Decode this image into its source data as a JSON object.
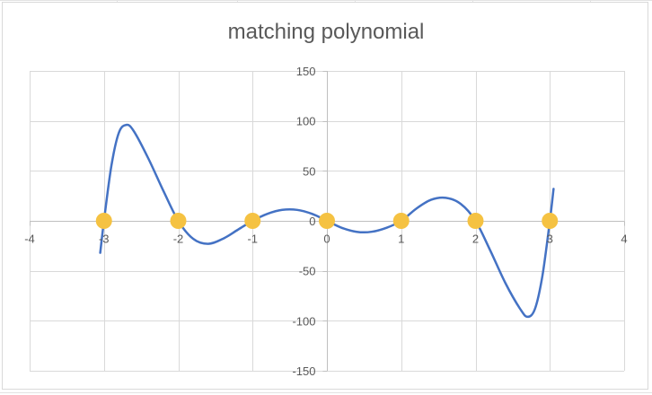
{
  "chart_data": {
    "type": "scatter",
    "title": "matching polynomial",
    "xlabel": "",
    "ylabel": "",
    "xlim": [
      -4,
      4
    ],
    "ylim": [
      -150,
      150
    ],
    "x_ticks": [
      -4,
      -3,
      -2,
      -1,
      0,
      1,
      2,
      3,
      4
    ],
    "y_ticks": [
      150,
      100,
      50,
      0,
      -50,
      -100,
      -150
    ],
    "grid": true,
    "series": [
      {
        "kind": "line",
        "color": "#4472c4",
        "points": [
          {
            "x": -3.05,
            "y": -32
          },
          {
            "x": -3.0,
            "y": 0
          },
          {
            "x": -2.9,
            "y": 55
          },
          {
            "x": -2.8,
            "y": 88
          },
          {
            "x": -2.7,
            "y": 96
          },
          {
            "x": -2.6,
            "y": 90
          },
          {
            "x": -2.4,
            "y": 62
          },
          {
            "x": -2.2,
            "y": 30
          },
          {
            "x": -2.0,
            "y": 0
          },
          {
            "x": -1.8,
            "y": -18
          },
          {
            "x": -1.6,
            "y": -23
          },
          {
            "x": -1.4,
            "y": -18
          },
          {
            "x": -1.2,
            "y": -9
          },
          {
            "x": -1.0,
            "y": 0
          },
          {
            "x": -0.8,
            "y": 7
          },
          {
            "x": -0.6,
            "y": 11
          },
          {
            "x": -0.4,
            "y": 11
          },
          {
            "x": -0.2,
            "y": 7
          },
          {
            "x": 0.0,
            "y": 0
          },
          {
            "x": 0.2,
            "y": -7
          },
          {
            "x": 0.4,
            "y": -11
          },
          {
            "x": 0.6,
            "y": -11
          },
          {
            "x": 0.8,
            "y": -7
          },
          {
            "x": 1.0,
            "y": 0
          },
          {
            "x": 1.2,
            "y": 12
          },
          {
            "x": 1.4,
            "y": 21
          },
          {
            "x": 1.6,
            "y": 23
          },
          {
            "x": 1.8,
            "y": 17
          },
          {
            "x": 2.0,
            "y": 0
          },
          {
            "x": 2.2,
            "y": -30
          },
          {
            "x": 2.4,
            "y": -62
          },
          {
            "x": 2.6,
            "y": -88
          },
          {
            "x": 2.7,
            "y": -96
          },
          {
            "x": 2.8,
            "y": -88
          },
          {
            "x": 2.9,
            "y": -55
          },
          {
            "x": 3.0,
            "y": 0
          },
          {
            "x": 3.05,
            "y": 32
          }
        ]
      },
      {
        "kind": "scatter",
        "color": "#f5c242",
        "points": [
          {
            "x": -3,
            "y": 0
          },
          {
            "x": -2,
            "y": 0
          },
          {
            "x": -1,
            "y": 0
          },
          {
            "x": 0,
            "y": 0
          },
          {
            "x": 1,
            "y": 0
          },
          {
            "x": 2,
            "y": 0
          },
          {
            "x": 3,
            "y": 0
          }
        ]
      }
    ]
  }
}
